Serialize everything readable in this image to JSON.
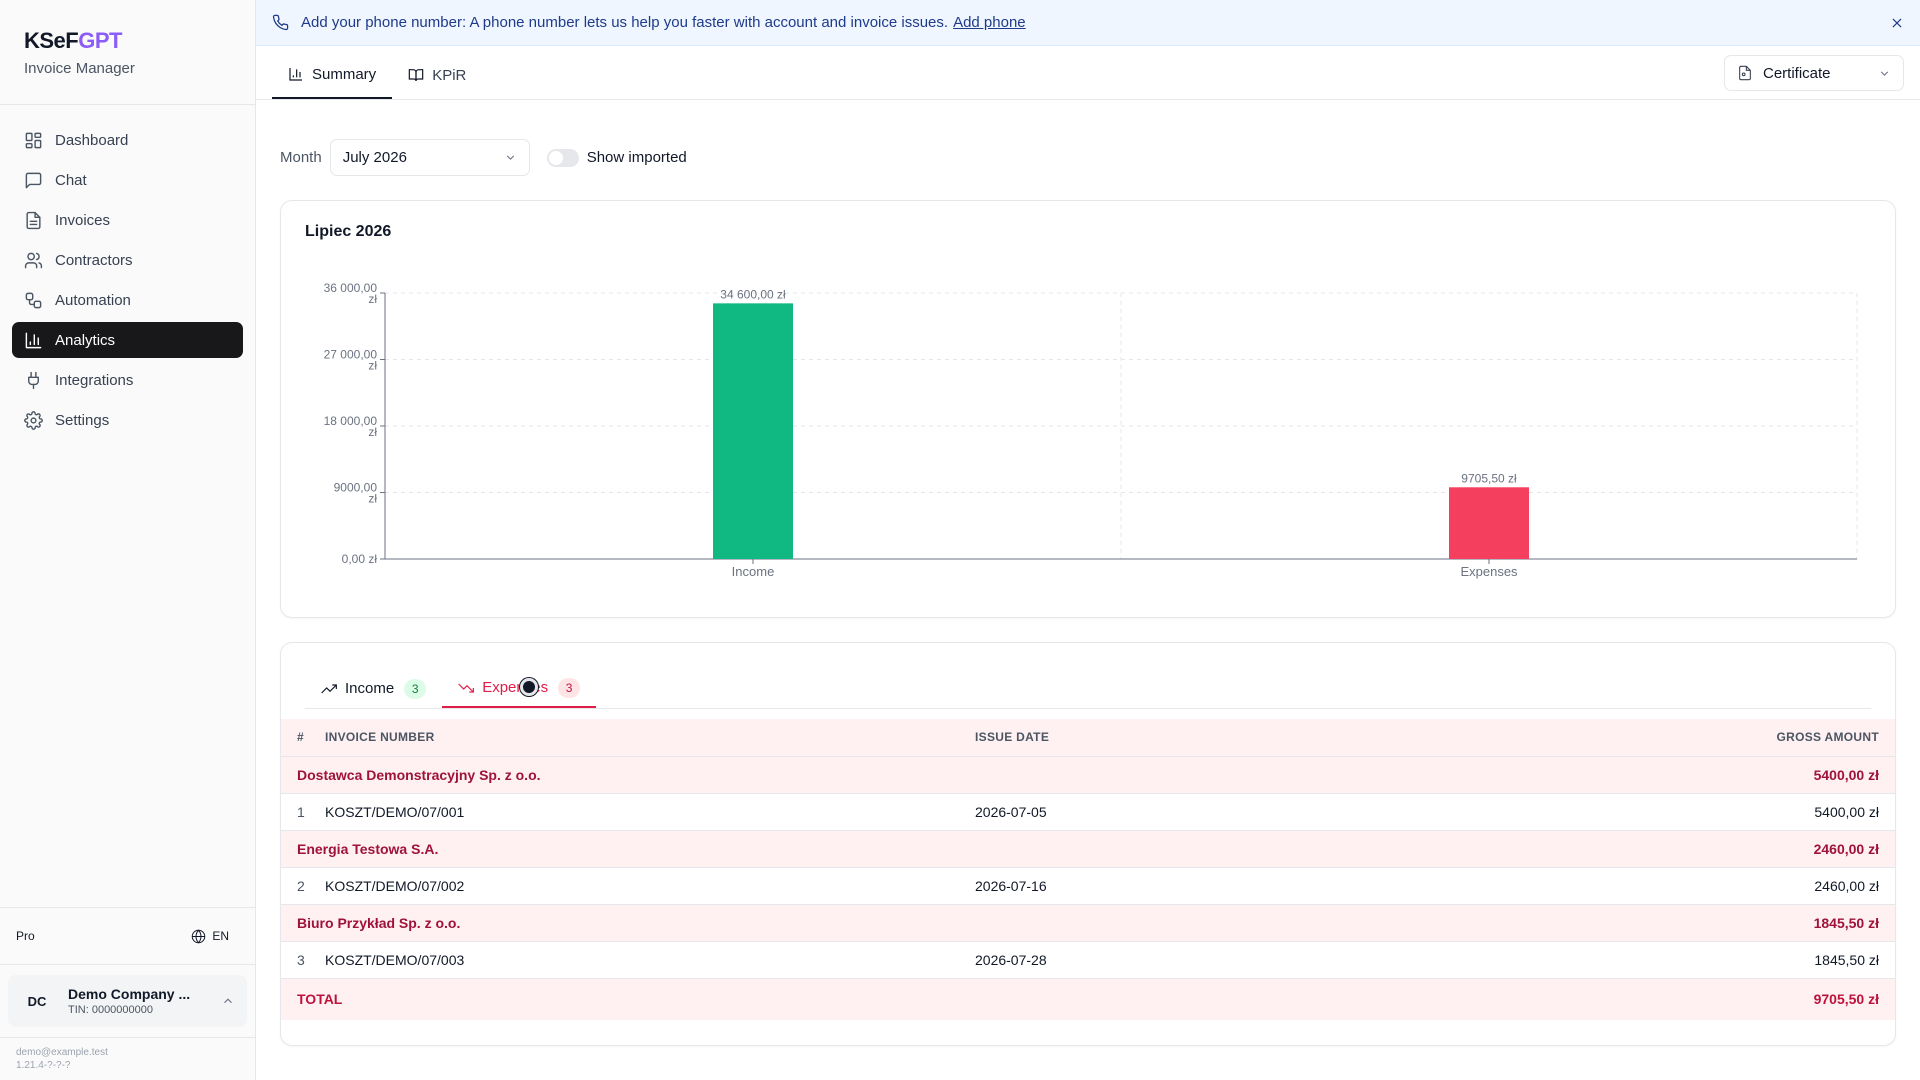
{
  "brand": {
    "name_main": "KSeF",
    "name_accent": "GPT",
    "subtitle": "Invoice Manager",
    "accent_color": "#8b5cf6"
  },
  "sidebar": {
    "items": [
      {
        "label": "Dashboard",
        "icon": "dashboard-icon"
      },
      {
        "label": "Chat",
        "icon": "chat-icon"
      },
      {
        "label": "Invoices",
        "icon": "invoice-icon"
      },
      {
        "label": "Contractors",
        "icon": "users-icon"
      },
      {
        "label": "Automation",
        "icon": "workflow-icon"
      },
      {
        "label": "Analytics",
        "icon": "bar-chart-icon",
        "active": true
      },
      {
        "label": "Integrations",
        "icon": "plug-icon"
      },
      {
        "label": "Settings",
        "icon": "gear-icon"
      }
    ],
    "plan": "Pro",
    "language": "EN",
    "company": {
      "initials": "DC",
      "name": "Demo Company ...",
      "tin": "TIN: 0000000000"
    },
    "email": "demo@example.test",
    "version": "1.21.4-?-?-?"
  },
  "banner": {
    "text": "Add your phone number: A phone number lets us help you faster with account and invoice issues.",
    "link": "Add phone"
  },
  "tabs": [
    {
      "label": "Summary",
      "icon": "bar-chart-icon",
      "active": true
    },
    {
      "label": "KPiR",
      "icon": "book-icon"
    }
  ],
  "certificate": {
    "label": "Certificate"
  },
  "filters": {
    "month_label": "Month",
    "month_value": "July 2026",
    "show_imported_label": "Show imported",
    "show_imported": false
  },
  "chart_data": {
    "type": "bar",
    "title": "Lipiec 2026",
    "categories": [
      "Income",
      "Expenses"
    ],
    "values": [
      34600,
      9705.5
    ],
    "value_labels": [
      "34 600,00 zł",
      "9705,50 zł"
    ],
    "colors": [
      "#10b981",
      "#f43f5e"
    ],
    "ylim": [
      0,
      36000
    ],
    "yticks": [
      0,
      9000,
      18000,
      27000,
      36000
    ],
    "ytick_labels": [
      [
        "0,00 zł"
      ],
      [
        "9000,00",
        "zł"
      ],
      [
        "18 000,00",
        "zł"
      ],
      [
        "27 000,00",
        "zł"
      ],
      [
        "36 000,00",
        "zł"
      ]
    ],
    "grid": true,
    "xlabel": "",
    "ylabel": ""
  },
  "subtabs": [
    {
      "label": "Income",
      "count": "3",
      "icon": "trending-up-icon"
    },
    {
      "label": "Expenses",
      "count": "3",
      "icon": "trending-down-icon",
      "active": true
    }
  ],
  "table": {
    "columns": [
      "#",
      "Invoice number",
      "Issue date",
      "Gross amount"
    ],
    "groups": [
      {
        "contractor": "Dostawca Demonstracyjny Sp. z o.o.",
        "subtotal": "5400,00 zł",
        "rows": [
          {
            "n": "1",
            "number": "KOSZT/DEMO/07/001",
            "date": "2026-07-05",
            "amount": "5400,00 zł"
          }
        ]
      },
      {
        "contractor": "Energia Testowa S.A.",
        "subtotal": "2460,00 zł",
        "rows": [
          {
            "n": "2",
            "number": "KOSZT/DEMO/07/002",
            "date": "2026-07-16",
            "amount": "2460,00 zł"
          }
        ]
      },
      {
        "contractor": "Biuro Przykład Sp. z o.o.",
        "subtotal": "1845,50 zł",
        "rows": [
          {
            "n": "3",
            "number": "KOSZT/DEMO/07/003",
            "date": "2026-07-28",
            "amount": "1845,50 zł"
          }
        ]
      }
    ],
    "total_label": "TOTAL",
    "total": "9705,50 zł"
  }
}
